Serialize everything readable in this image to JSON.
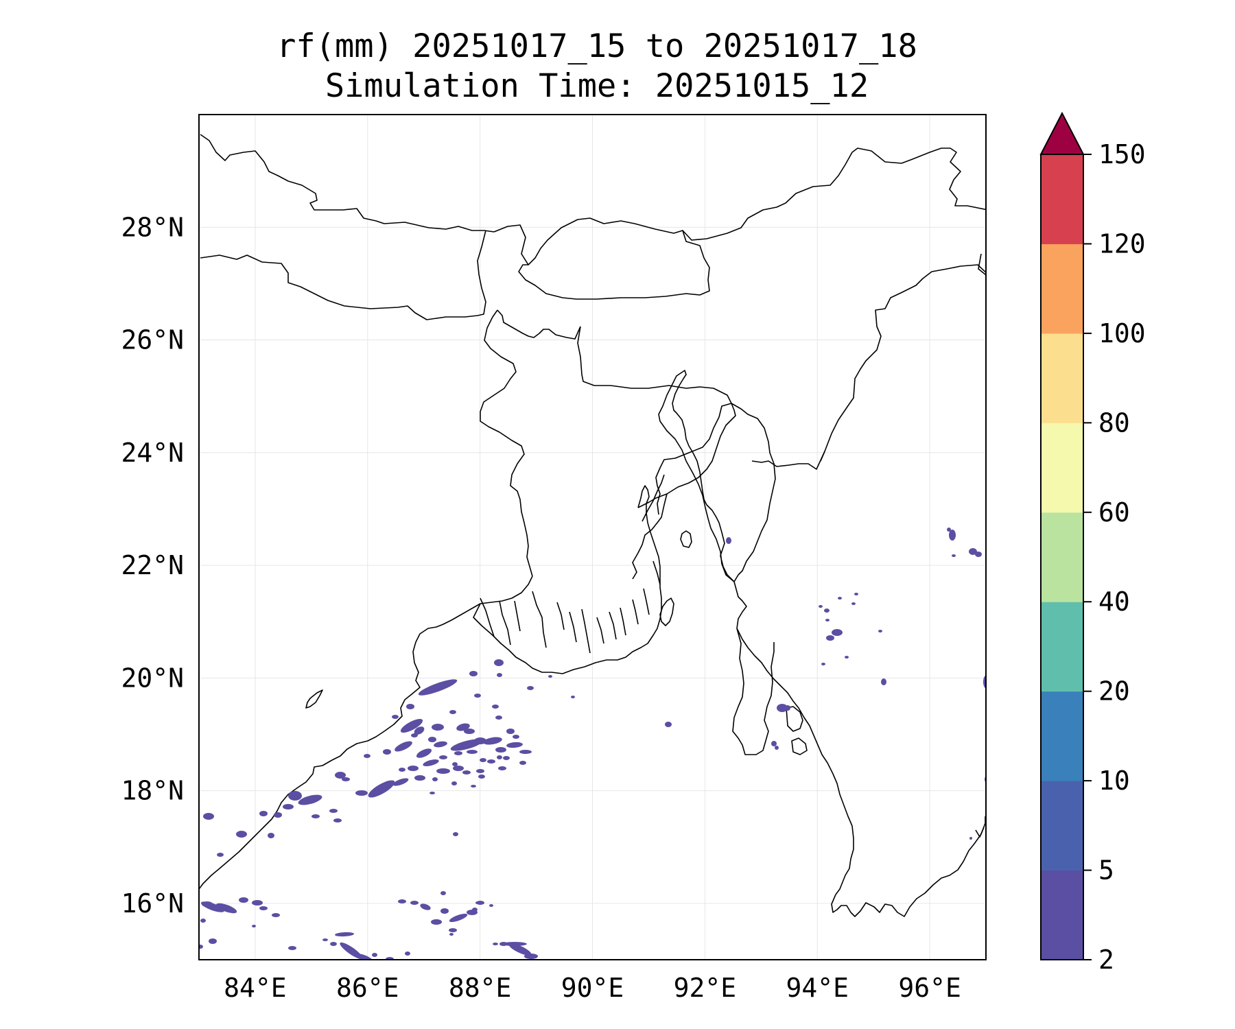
{
  "title_line1": "rf(mm) 20251017_15 to 20251017_18",
  "title_line2": "Simulation Time: 20251015_12",
  "map": {
    "lon_range": [
      83,
      97
    ],
    "lat_range": [
      15,
      30
    ],
    "lon_ticks": [
      "84°E",
      "86°E",
      "88°E",
      "90°E",
      "92°E",
      "94°E",
      "96°E"
    ],
    "lat_ticks": [
      "16°N",
      "18°N",
      "20°N",
      "22°N",
      "24°N",
      "26°N",
      "28°N"
    ],
    "gridlines": true,
    "rain_color": "#5a4fa2",
    "coastline_color": "#000000"
  },
  "colorbar": {
    "extend": "max",
    "tick_labels": [
      "2",
      "5",
      "10",
      "20",
      "40",
      "60",
      "80",
      "100",
      "120",
      "150"
    ],
    "colors": [
      "#5a4fa2",
      "#4a62ad",
      "#3a80ba",
      "#60bfac",
      "#bae3a0",
      "#f4f9ad",
      "#fbdf8e",
      "#f9a35f",
      "#d6404f",
      "#9e0142"
    ]
  }
}
